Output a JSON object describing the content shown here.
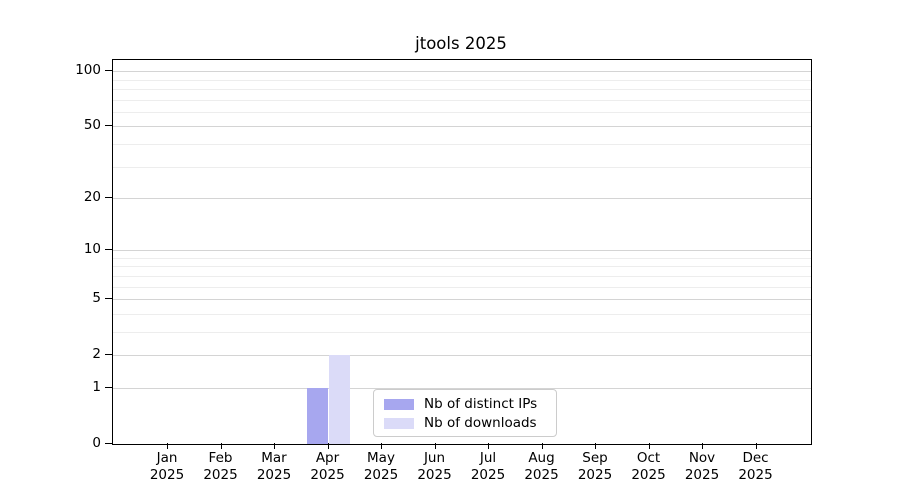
{
  "chart_data": {
    "type": "bar",
    "title": "jtools 2025",
    "categories": [
      "Jan",
      "Feb",
      "Mar",
      "Apr",
      "May",
      "Jun",
      "Jul",
      "Aug",
      "Sep",
      "Oct",
      "Nov",
      "Dec"
    ],
    "year_label": "2025",
    "series": [
      {
        "name": "Nb of distinct IPs",
        "color": "#a7a7ef",
        "values": [
          0,
          0,
          0,
          1,
          0,
          0,
          0,
          0,
          0,
          0,
          0,
          0
        ]
      },
      {
        "name": "Nb of downloads",
        "color": "#dbdbf8",
        "values": [
          0,
          0,
          0,
          2,
          0,
          0,
          0,
          0,
          0,
          0,
          0,
          0
        ]
      }
    ],
    "xlabel": "",
    "ylabel": "",
    "y_scale": "log1p",
    "y_major_ticks": [
      0,
      1,
      2,
      5,
      10,
      20,
      50,
      100
    ],
    "y_minor_ticks": [
      3,
      4,
      6,
      7,
      8,
      9,
      30,
      40,
      60,
      70,
      80,
      90
    ],
    "ylim": [
      0,
      113
    ],
    "grid": true,
    "legend_position": "lower center",
    "colors": {
      "major_grid": "#d4d4d4",
      "minor_grid": "#ededed",
      "axis": "#000000",
      "background": "#ffffff"
    }
  }
}
